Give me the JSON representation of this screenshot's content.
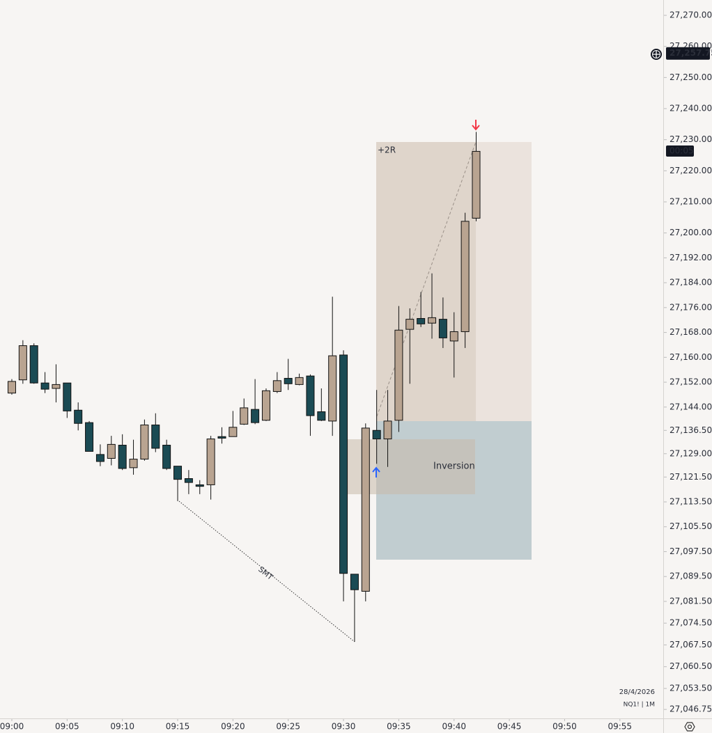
{
  "chart_data": {
    "type": "candlestick",
    "x": [
      0,
      1,
      2,
      3,
      4,
      5,
      6,
      7,
      8,
      9,
      10,
      11,
      12,
      13,
      14,
      15,
      16,
      17,
      18,
      19,
      20,
      21,
      22,
      23,
      24,
      25,
      26,
      27,
      28,
      29,
      30,
      31,
      32,
      33,
      34,
      35,
      36,
      37,
      38,
      39,
      40,
      41,
      42
    ],
    "open": [
      27148.5,
      27152.75,
      27163.75,
      27151.75,
      27150,
      27151.75,
      27143,
      27139,
      27128.75,
      27127.5,
      27131.75,
      27124.5,
      27127.25,
      27138.25,
      27131.75,
      27125,
      27121,
      27119,
      27119,
      27134.5,
      27134.5,
      27138.5,
      27143.25,
      27139.75,
      27149,
      27153.25,
      27151.25,
      27154,
      27142.5,
      27139.5,
      27160.75,
      27090.25,
      27084.75,
      27136.5,
      27133.75,
      27139.75,
      27169,
      27172.5,
      27171,
      27172.25,
      27165.25,
      27168.25,
      27204.75
    ],
    "high": [
      27153,
      27165.5,
      27164.5,
      27155.25,
      27157.75,
      27151.75,
      27145.5,
      27139.5,
      27132,
      27134.75,
      27135.25,
      27133.5,
      27140,
      27142,
      27133.5,
      27125,
      27123.75,
      27120.5,
      27134.75,
      27137.5,
      27142.75,
      27146.75,
      27153,
      27150,
      27155.25,
      27159.5,
      27154.75,
      27154.5,
      27150,
      27179.5,
      27162.25,
      27090.25,
      27138.75,
      27149.5,
      27149.5,
      27176.5,
      27175.75,
      27181,
      27187,
      27179.25,
      27174.5,
      27206.5,
      27232.5
    ],
    "low": [
      27148,
      27151.5,
      27151.5,
      27148.5,
      27145.5,
      27140.5,
      27136.5,
      27129.75,
      27125,
      27125.25,
      27123.75,
      27122.25,
      27126.75,
      27129.5,
      27123.75,
      27113.75,
      27116,
      27116,
      27114.25,
      27132.25,
      27134.5,
      27138.25,
      27138.5,
      27139.5,
      27148.5,
      27149.5,
      27151,
      27134.75,
      27139.5,
      27134.75,
      27081.5,
      27068.5,
      27081.5,
      27125.75,
      27124.75,
      27136,
      27151.5,
      27169.75,
      27166,
      27163,
      27153.5,
      27163,
      27203.75
    ],
    "close": [
      27152.25,
      27163.75,
      27151.75,
      27149.75,
      27151.25,
      27142.75,
      27138.75,
      27129.75,
      27126.5,
      27132,
      27124.25,
      27127.25,
      27138.25,
      27130.75,
      27124.25,
      27120.75,
      27119.75,
      27118.5,
      27133.75,
      27134,
      27137.5,
      27143.75,
      27139,
      27149.25,
      27152.5,
      27151.5,
      27153.5,
      27141.25,
      27139.75,
      27160.5,
      27090.5,
      27085.25,
      27137.25,
      27133.75,
      27139.5,
      27168.75,
      27172.25,
      27170.75,
      27172.75,
      27166.25,
      27168.25,
      27203.75,
      27226.25
    ],
    "colors": {
      "up": "#b9a491",
      "down": "#1b4b54"
    },
    "xlim": [
      -1.07,
      58.92
    ],
    "xticks": [
      {
        "value": 0,
        "label": "09:00"
      },
      {
        "value": 5,
        "label": "09:05"
      },
      {
        "value": 10,
        "label": "09:10"
      },
      {
        "value": 15,
        "label": "09:15"
      },
      {
        "value": 20,
        "label": "09:20"
      },
      {
        "value": 25,
        "label": "09:25"
      },
      {
        "value": 30,
        "label": "09:30"
      },
      {
        "value": 35,
        "label": "09:35"
      },
      {
        "value": 40,
        "label": "09:40"
      },
      {
        "value": 45,
        "label": "09:45"
      },
      {
        "value": 50,
        "label": "09:50"
      },
      {
        "value": 55,
        "label": "09:55"
      }
    ],
    "ylim": [
      27043.87,
      27274.93
    ],
    "yticks": [
      {
        "value": 27270,
        "label": "27,270.00"
      },
      {
        "value": 27260,
        "label": "27,260.00"
      },
      {
        "value": 27250,
        "label": "27,250.00"
      },
      {
        "value": 27240,
        "label": "27,240.00"
      },
      {
        "value": 27230,
        "label": "27,230.00"
      },
      {
        "value": 27220,
        "label": "27,220.00"
      },
      {
        "value": 27210,
        "label": "27,210.00"
      },
      {
        "value": 27200,
        "label": "27,200.00"
      },
      {
        "value": 27192,
        "label": "27,192.00"
      },
      {
        "value": 27184,
        "label": "27,184.00"
      },
      {
        "value": 27176,
        "label": "27,176.00"
      },
      {
        "value": 27168,
        "label": "27,168.00"
      },
      {
        "value": 27160,
        "label": "27,160.00"
      },
      {
        "value": 27152,
        "label": "27,152.00"
      },
      {
        "value": 27144,
        "label": "27,144.00"
      },
      {
        "value": 27136.5,
        "label": "27,136.50"
      },
      {
        "value": 27129,
        "label": "27,129.00"
      },
      {
        "value": 27121.5,
        "label": "27,121.50"
      },
      {
        "value": 27113.5,
        "label": "27,113.50"
      },
      {
        "value": 27105.5,
        "label": "27,105.50"
      },
      {
        "value": 27097.5,
        "label": "27,097.50"
      },
      {
        "value": 27089.5,
        "label": "27,089.50"
      },
      {
        "value": 27081.5,
        "label": "27,081.50"
      },
      {
        "value": 27074.5,
        "label": "27,074.50"
      },
      {
        "value": 27067.5,
        "label": "27,067.50"
      },
      {
        "value": 27060.5,
        "label": "27,060.50"
      },
      {
        "value": 27053.5,
        "label": "27,053.50"
      },
      {
        "value": 27046.75,
        "label": "27,046.75"
      }
    ],
    "price_label": {
      "value": 27257.75,
      "label": "27,257.75"
    },
    "countdown": "00:05",
    "annotations": {
      "target": "+2R",
      "inversion": "Inversion",
      "smt": "SMT"
    },
    "date": "28/4/2026",
    "symbol": "NQ1! | 1M"
  }
}
